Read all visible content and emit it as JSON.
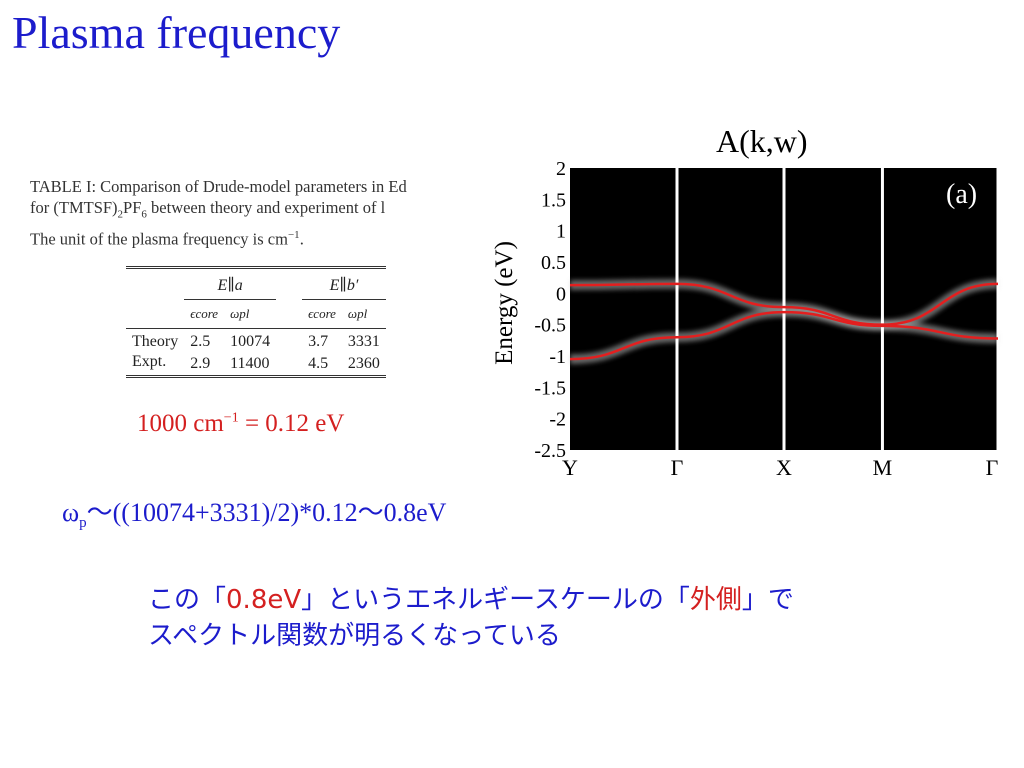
{
  "slide": {
    "title": "Plasma frequency"
  },
  "table": {
    "caption_line1": "TABLE I: Comparison of Drude-model parameters in Ed",
    "caption_line2_pre": "for (TMTSF)",
    "caption_line2_sub1": "2",
    "caption_line2_mid": "PF",
    "caption_line2_sub2": "6",
    "caption_line2_post": " between theory and experiment of l",
    "caption_line3_pre": "The unit of the plasma frequency is cm",
    "caption_line3_sup": "−1",
    "caption_line3_post": ".",
    "group_a": "E∥a",
    "group_b": "E∥b′",
    "col_eps": "ϵcore",
    "col_wpl": "ωpl",
    "rows": [
      {
        "label": "Theory",
        "eps_a": "2.5",
        "wpl_a": "10074",
        "eps_b": "3.7",
        "wpl_b": "3331"
      },
      {
        "label": "Expt.",
        "eps_a": "2.9",
        "wpl_a": "11400",
        "eps_b": "4.5",
        "wpl_b": "2360"
      }
    ]
  },
  "conversion": {
    "pre": "1000 cm",
    "sup": "−1",
    "post": " = 0.12 eV"
  },
  "chart_data": {
    "type": "line",
    "title": "A(k,w)",
    "ylabel": "Energy (eV)",
    "panel_label": "(a)",
    "ylim": [
      -2.5,
      2
    ],
    "yticks": [
      "2",
      "1.5",
      "1",
      "0.5",
      "0",
      "-0.5",
      "-1",
      "-1.5",
      "-2",
      "-2.5"
    ],
    "xticks": [
      "Y",
      "Γ",
      "X",
      "M",
      "Γ"
    ],
    "x": [
      0,
      0.25,
      0.5,
      0.73,
      1.0
    ],
    "series": [
      {
        "values": [
          0.13,
          0.15,
          -0.22,
          -0.5,
          0.15
        ]
      },
      {
        "values": [
          -1.05,
          -0.7,
          -0.3,
          -0.52,
          -0.72
        ]
      }
    ],
    "colors": {
      "band": "#e31f1f",
      "background": "#000000",
      "kpath_line": "#ffffff"
    }
  },
  "formula": {
    "omega": "ω",
    "sub": "p",
    "expr": "～((10074+3331)/2)*0.12～0.8eV"
  },
  "note": {
    "part1": "この「",
    "hl1": "0.8eV",
    "part2": "」というエネルギースケールの「",
    "hl2": "外側",
    "part3": "」で",
    "line2": "スペクトル関数が明るくなっている"
  }
}
